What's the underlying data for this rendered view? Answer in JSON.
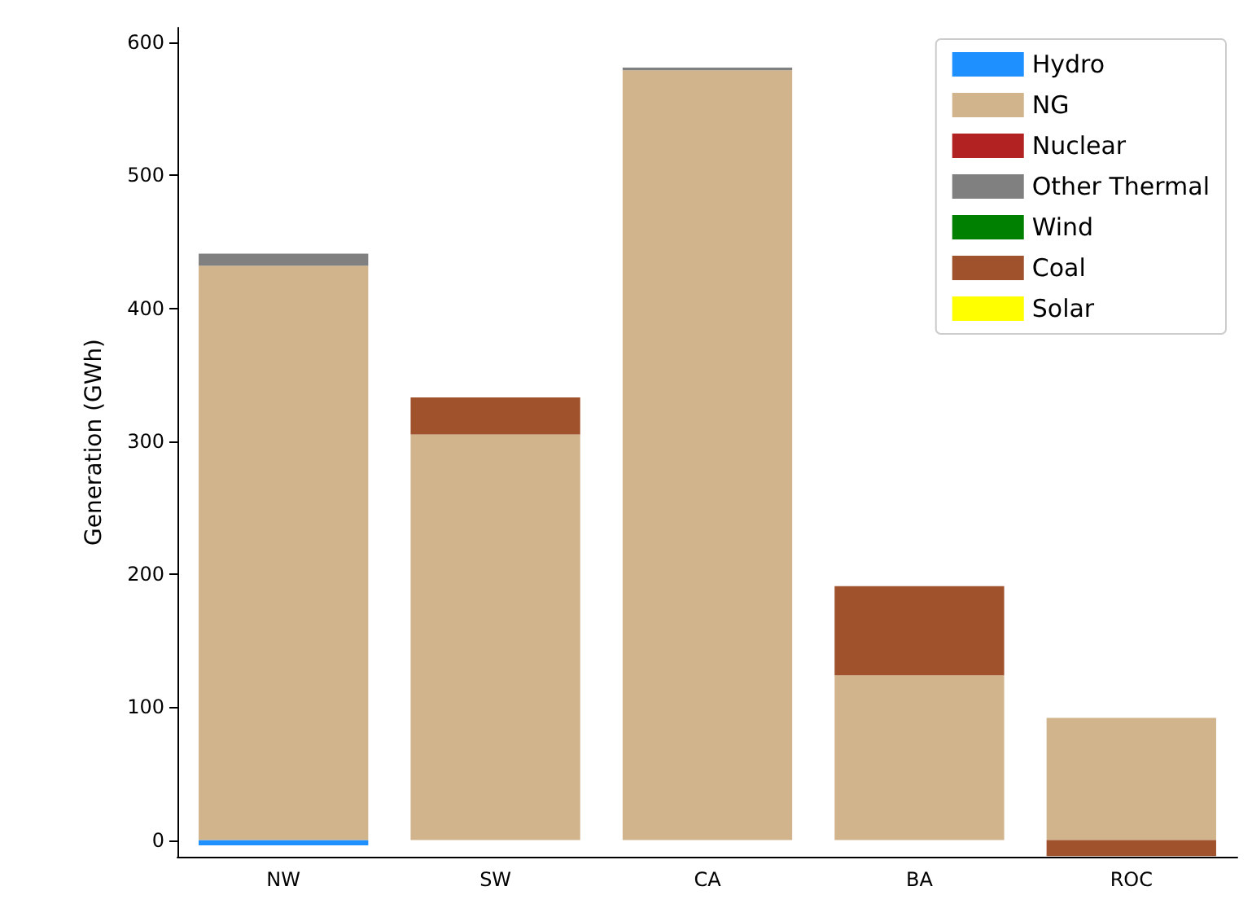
{
  "chart_data": {
    "type": "bar",
    "stacked": true,
    "ylabel": "Generation (GWh)",
    "categories": [
      "NW",
      "SW",
      "CA",
      "BA",
      "ROC"
    ],
    "series": [
      {
        "name": "Hydro",
        "color": "#1e90ff",
        "values": [
          -4,
          0,
          0,
          0,
          0
        ]
      },
      {
        "name": "NG",
        "color": "#d2b48c",
        "values": [
          432,
          305,
          579,
          124,
          92
        ]
      },
      {
        "name": "Nuclear",
        "color": "#b22222",
        "values": [
          0,
          0,
          0,
          0,
          0
        ]
      },
      {
        "name": "Other Thermal",
        "color": "#808080",
        "values": [
          9,
          0,
          2,
          0,
          0
        ]
      },
      {
        "name": "Wind",
        "color": "#008000",
        "values": [
          0,
          0,
          0,
          0,
          0
        ]
      },
      {
        "name": "Coal",
        "color": "#a0522d",
        "values": [
          0,
          28,
          0,
          67,
          -12
        ]
      },
      {
        "name": "Solar",
        "color": "#ffff00",
        "values": [
          0,
          0,
          0,
          0,
          0
        ]
      }
    ],
    "ylim": [
      -12.5,
      611
    ],
    "yticks": [
      0,
      100,
      200,
      300,
      400,
      500,
      600
    ],
    "grid": false,
    "legend": "top right"
  }
}
